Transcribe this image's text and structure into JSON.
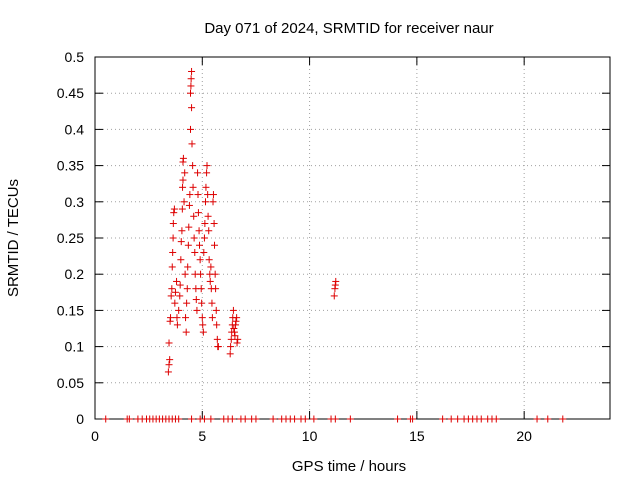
{
  "chart_data": {
    "type": "scatter",
    "title": "Day 071 of 2024, SRMTID for receiver naur",
    "xlabel": "GPS time / hours",
    "ylabel": "SRMTID / TECUs",
    "xlim": [
      0,
      24
    ],
    "ylim": [
      0,
      0.5
    ],
    "xticks": [
      0,
      5,
      10,
      15,
      20
    ],
    "yticks": [
      0,
      0.05,
      0.1,
      0.15,
      0.2,
      0.25,
      0.3,
      0.35,
      0.4,
      0.45,
      0.5
    ],
    "grid": true,
    "marker": "+",
    "series_color": "#dd0000",
    "series": [
      {
        "points": [
          [
            0.5,
            0
          ],
          [
            1.5,
            0
          ],
          [
            1.6,
            0
          ],
          [
            2.0,
            0
          ],
          [
            2.2,
            0
          ],
          [
            2.4,
            0
          ],
          [
            2.55,
            0
          ],
          [
            2.7,
            0
          ],
          [
            2.85,
            0
          ],
          [
            3.0,
            0
          ],
          [
            3.15,
            0
          ],
          [
            3.3,
            0
          ],
          [
            3.45,
            0
          ],
          [
            3.6,
            0
          ],
          [
            3.75,
            0
          ],
          [
            3.9,
            0
          ],
          [
            4.5,
            0
          ],
          [
            4.9,
            0
          ],
          [
            5.1,
            0
          ],
          [
            5.4,
            0
          ],
          [
            6.0,
            0
          ],
          [
            6.2,
            0
          ],
          [
            6.4,
            0
          ],
          [
            6.8,
            0
          ],
          [
            7.0,
            0
          ],
          [
            7.3,
            0
          ],
          [
            7.5,
            0
          ],
          [
            8.3,
            0
          ],
          [
            8.7,
            0
          ],
          [
            8.9,
            0
          ],
          [
            9.1,
            0
          ],
          [
            9.3,
            0
          ],
          [
            9.6,
            0
          ],
          [
            9.8,
            0
          ],
          [
            10.2,
            0
          ],
          [
            11.0,
            0
          ],
          [
            11.2,
            0
          ],
          [
            11.9,
            0
          ],
          [
            14.1,
            0
          ],
          [
            14.7,
            0
          ],
          [
            14.8,
            0
          ],
          [
            16.2,
            0
          ],
          [
            16.6,
            0
          ],
          [
            16.9,
            0
          ],
          [
            17.2,
            0
          ],
          [
            17.4,
            0
          ],
          [
            17.6,
            0
          ],
          [
            17.8,
            0
          ],
          [
            18.0,
            0
          ],
          [
            18.3,
            0
          ],
          [
            18.5,
            0
          ],
          [
            18.7,
            0
          ],
          [
            20.6,
            0
          ],
          [
            21.1,
            0
          ],
          [
            21.8,
            0
          ],
          [
            3.42,
            0.065
          ],
          [
            3.45,
            0.075
          ],
          [
            3.48,
            0.082
          ],
          [
            3.45,
            0.105
          ],
          [
            3.5,
            0.135
          ],
          [
            3.52,
            0.14
          ],
          [
            3.55,
            0.17
          ],
          [
            3.58,
            0.18
          ],
          [
            3.6,
            0.21
          ],
          [
            3.62,
            0.23
          ],
          [
            3.64,
            0.25
          ],
          [
            3.65,
            0.27
          ],
          [
            3.67,
            0.285
          ],
          [
            3.7,
            0.29
          ],
          [
            3.72,
            0.16
          ],
          [
            3.75,
            0.175
          ],
          [
            3.8,
            0.19
          ],
          [
            3.82,
            0.14
          ],
          [
            3.84,
            0.13
          ],
          [
            3.9,
            0.15
          ],
          [
            3.95,
            0.17
          ],
          [
            3.97,
            0.185
          ],
          [
            4.0,
            0.22
          ],
          [
            4.02,
            0.245
          ],
          [
            4.05,
            0.26
          ],
          [
            4.07,
            0.29
          ],
          [
            4.08,
            0.32
          ],
          [
            4.1,
            0.33
          ],
          [
            4.1,
            0.355
          ],
          [
            4.12,
            0.36
          ],
          [
            4.15,
            0.3
          ],
          [
            4.18,
            0.34
          ],
          [
            4.2,
            0.2
          ],
          [
            4.22,
            0.14
          ],
          [
            4.25,
            0.12
          ],
          [
            4.27,
            0.16
          ],
          [
            4.3,
            0.18
          ],
          [
            4.32,
            0.21
          ],
          [
            4.35,
            0.24
          ],
          [
            4.37,
            0.265
          ],
          [
            4.4,
            0.295
          ],
          [
            4.42,
            0.31
          ],
          [
            4.45,
            0.4
          ],
          [
            4.45,
            0.45
          ],
          [
            4.47,
            0.46
          ],
          [
            4.48,
            0.47
          ],
          [
            4.5,
            0.48
          ],
          [
            4.5,
            0.43
          ],
          [
            4.52,
            0.38
          ],
          [
            4.55,
            0.35
          ],
          [
            4.57,
            0.32
          ],
          [
            4.6,
            0.28
          ],
          [
            4.62,
            0.25
          ],
          [
            4.65,
            0.23
          ],
          [
            4.67,
            0.2
          ],
          [
            4.7,
            0.18
          ],
          [
            4.72,
            0.165
          ],
          [
            4.75,
            0.15
          ],
          [
            4.78,
            0.34
          ],
          [
            4.8,
            0.31
          ],
          [
            4.82,
            0.285
          ],
          [
            4.85,
            0.26
          ],
          [
            4.87,
            0.24
          ],
          [
            4.9,
            0.22
          ],
          [
            4.92,
            0.2
          ],
          [
            4.95,
            0.18
          ],
          [
            4.97,
            0.16
          ],
          [
            5.0,
            0.14
          ],
          [
            5.02,
            0.13
          ],
          [
            5.05,
            0.12
          ],
          [
            5.07,
            0.23
          ],
          [
            5.1,
            0.25
          ],
          [
            5.12,
            0.27
          ],
          [
            5.15,
            0.3
          ],
          [
            5.17,
            0.32
          ],
          [
            5.2,
            0.34
          ],
          [
            5.22,
            0.35
          ],
          [
            5.25,
            0.31
          ],
          [
            5.27,
            0.28
          ],
          [
            5.3,
            0.26
          ],
          [
            5.32,
            0.22
          ],
          [
            5.35,
            0.2
          ],
          [
            5.37,
            0.19
          ],
          [
            5.4,
            0.21
          ],
          [
            5.42,
            0.18
          ],
          [
            5.45,
            0.16
          ],
          [
            5.47,
            0.14
          ],
          [
            5.5,
            0.3
          ],
          [
            5.52,
            0.31
          ],
          [
            5.55,
            0.27
          ],
          [
            5.57,
            0.24
          ],
          [
            5.6,
            0.2
          ],
          [
            5.62,
            0.18
          ],
          [
            5.65,
            0.15
          ],
          [
            5.67,
            0.13
          ],
          [
            5.7,
            0.11
          ],
          [
            5.72,
            0.1
          ],
          [
            5.75,
            0.1
          ],
          [
            6.3,
            0.09
          ],
          [
            6.32,
            0.1
          ],
          [
            6.35,
            0.11
          ],
          [
            6.37,
            0.12
          ],
          [
            6.4,
            0.13
          ],
          [
            6.42,
            0.14
          ],
          [
            6.45,
            0.15
          ],
          [
            6.47,
            0.125
          ],
          [
            6.5,
            0.12
          ],
          [
            6.52,
            0.115
          ],
          [
            6.55,
            0.13
          ],
          [
            6.57,
            0.135
          ],
          [
            6.6,
            0.14
          ],
          [
            6.62,
            0.105
          ],
          [
            6.65,
            0.11
          ],
          [
            11.15,
            0.17
          ],
          [
            11.18,
            0.18
          ],
          [
            11.2,
            0.185
          ],
          [
            11.22,
            0.19
          ]
        ]
      }
    ]
  }
}
